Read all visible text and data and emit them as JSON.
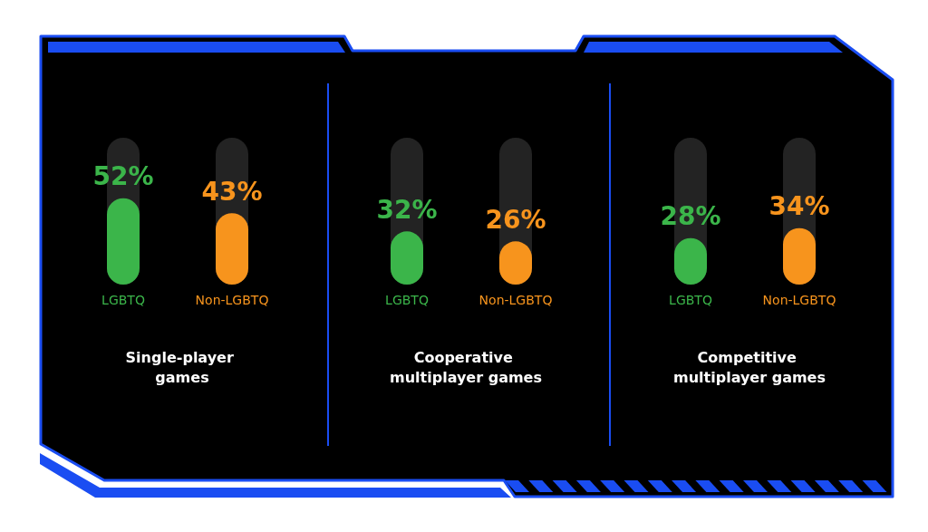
{
  "chart_data": [
    {
      "type": "bar",
      "title": "Single-player games",
      "categories": [
        "LGBTQ",
        "Non-LGBTQ"
      ],
      "values": [
        52,
        43
      ],
      "colors": [
        "#3bb54a",
        "#f7941d"
      ],
      "value_labels": [
        "52%",
        "43%"
      ],
      "tick_labels": "x"
    },
    {
      "type": "bar",
      "title": "Cooperative multiplayer games",
      "categories": [
        "LGBTQ",
        "Non-LGBTQ"
      ],
      "values": [
        32,
        26
      ],
      "colors": [
        "#3bb54a",
        "#f7941d"
      ],
      "value_labels": [
        "32%",
        "26%"
      ],
      "tick_labels": "x"
    },
    {
      "type": "bar",
      "title": "Competitive multiplayer games",
      "categories": [
        "LGBTQ",
        "Non-LGBTQ"
      ],
      "values": [
        28,
        34
      ],
      "colors": [
        "#3bb54a",
        "#f7941d"
      ],
      "value_labels": [
        "28%",
        "34%"
      ],
      "tick_labels": "x"
    }
  ]
}
